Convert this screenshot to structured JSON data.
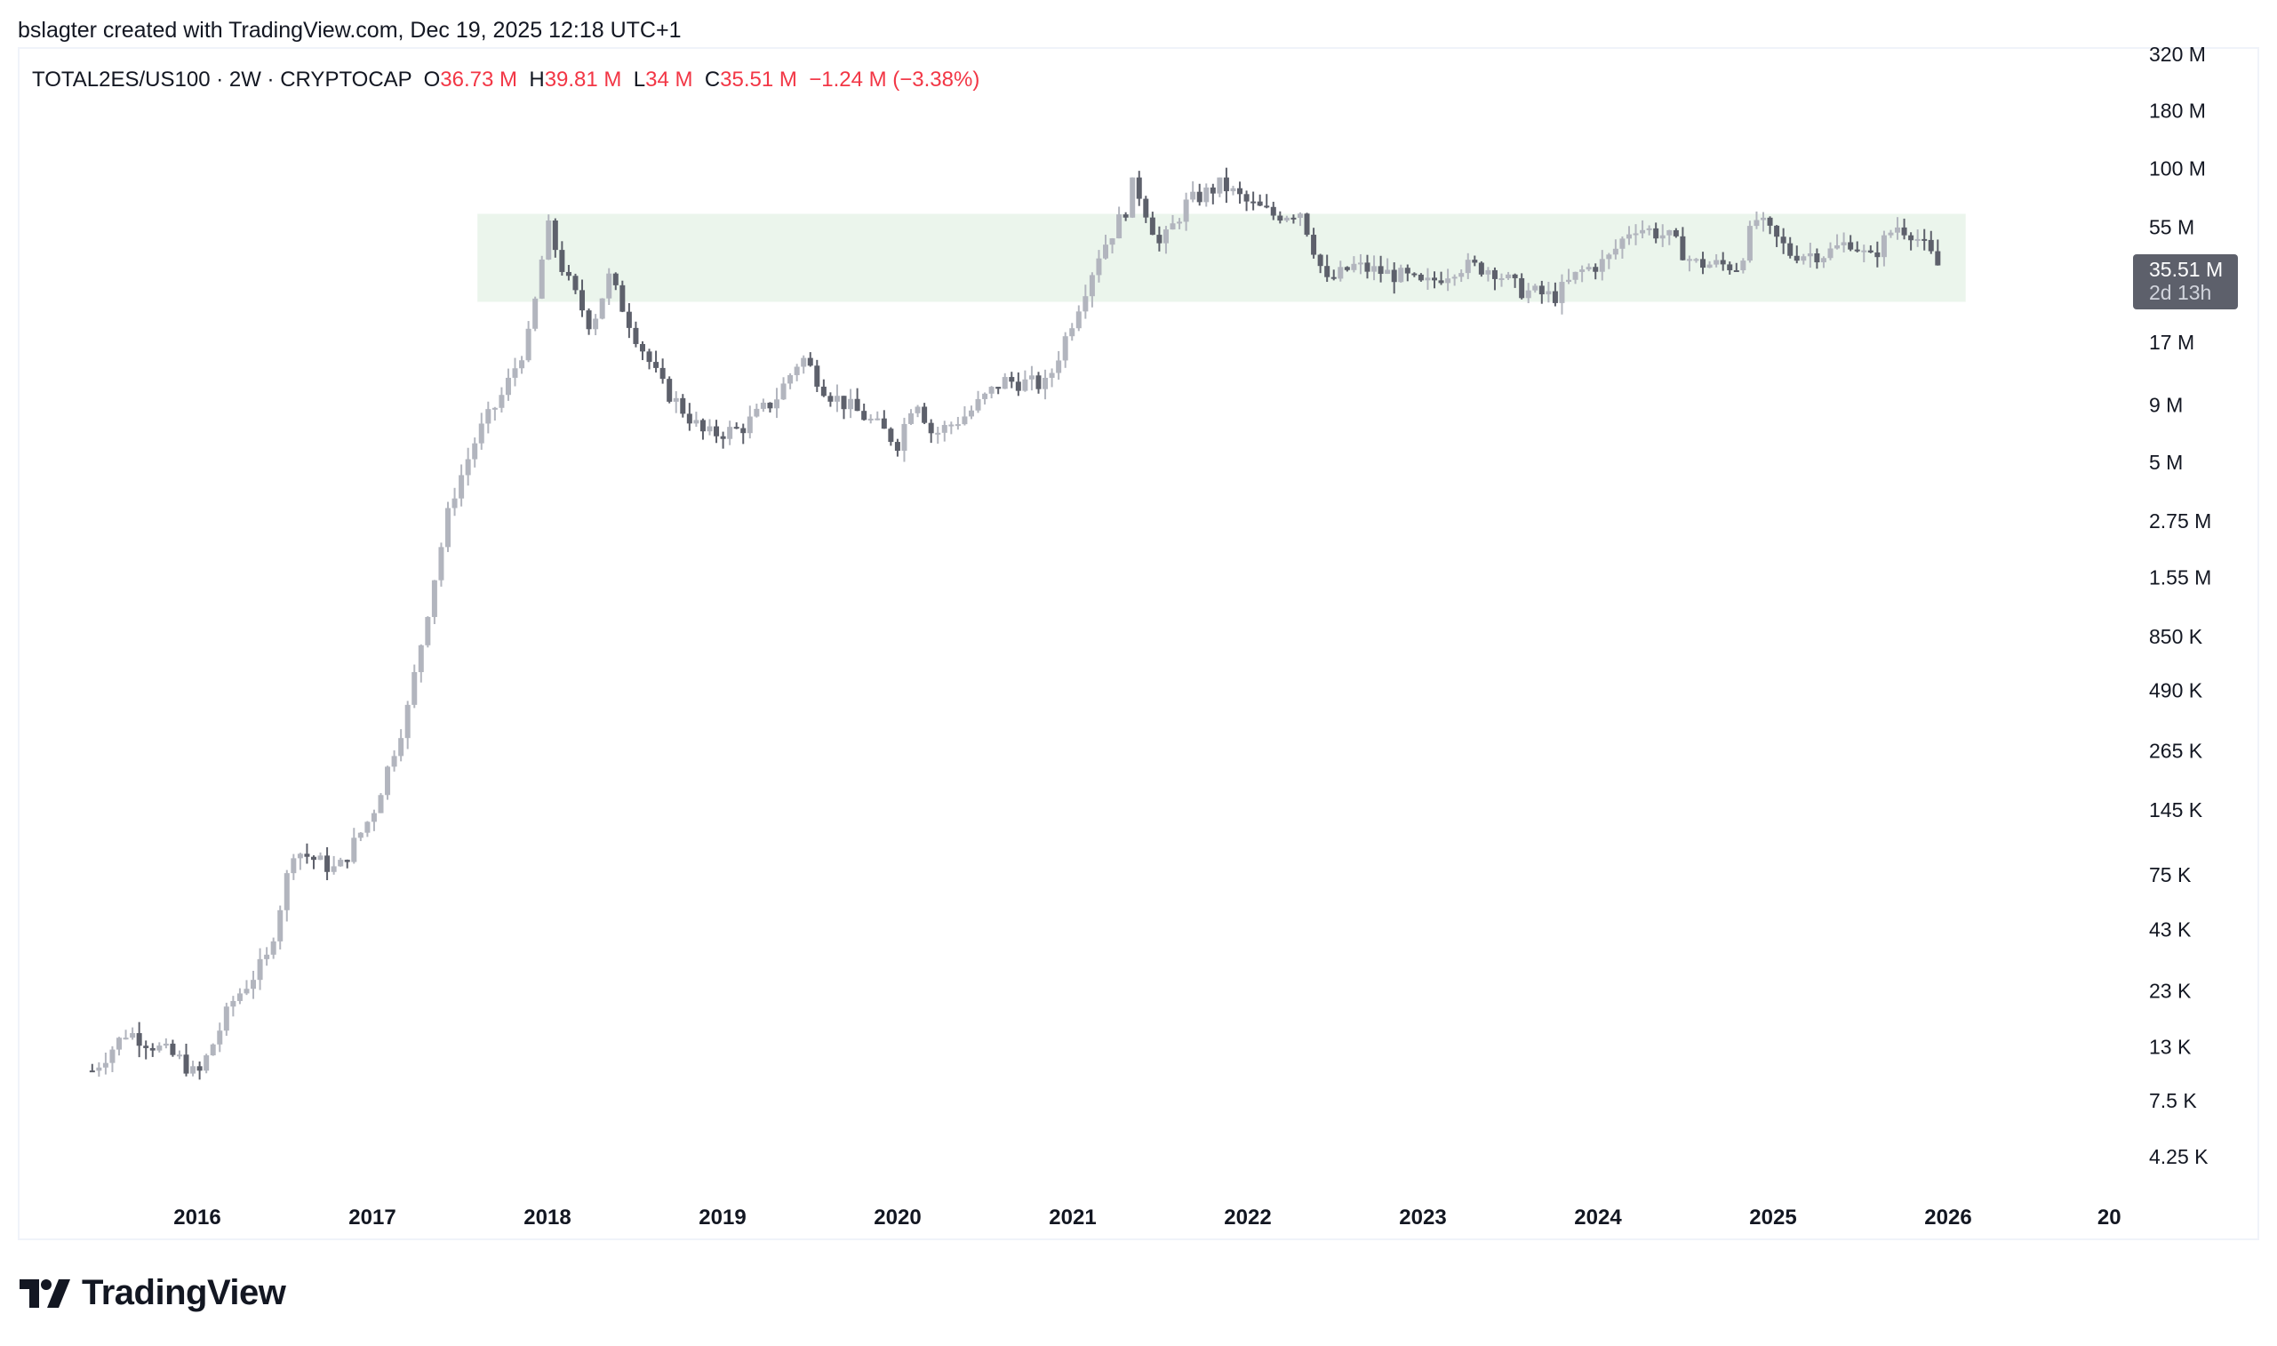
{
  "credit": "bslagter created with TradingView.com, Dec 19, 2025 12:18 UTC+1",
  "legend": {
    "symbol": "TOTAL2ES/US100 · 2W · CRYPTOCAP",
    "o_label": "O",
    "o": "36.73 M",
    "h_label": "H",
    "h": "39.81 M",
    "l_label": "L",
    "l": "34 M",
    "c_label": "C",
    "c": "35.51 M",
    "change": "−1.24 M (−3.38%)"
  },
  "badge": {
    "price": "35.51 M",
    "countdown": "2d 13h"
  },
  "logo_text": "TradingView",
  "colors": {
    "up": "#b2b5be",
    "down": "#5d606b",
    "zone": "#ebf5ec",
    "change": "#f23645"
  },
  "chart_data": {
    "type": "candlestick",
    "interval": "2W",
    "yscale": "log",
    "ylim": [
      4000,
      330000000
    ],
    "y_ticks": [
      {
        "v": 320000000,
        "label": "320 M"
      },
      {
        "v": 180000000,
        "label": "180 M"
      },
      {
        "v": 100000000,
        "label": "100 M"
      },
      {
        "v": 55000000,
        "label": "55 M"
      },
      {
        "v": 17000000,
        "label": "17 M"
      },
      {
        "v": 9000000,
        "label": "9 M"
      },
      {
        "v": 5000000,
        "label": "5 M"
      },
      {
        "v": 2750000,
        "label": "2.75 M"
      },
      {
        "v": 1550000,
        "label": "1.55 M"
      },
      {
        "v": 850000,
        "label": "850 K"
      },
      {
        "v": 490000,
        "label": "490 K"
      },
      {
        "v": 265000,
        "label": "265 K"
      },
      {
        "v": 145000,
        "label": "145 K"
      },
      {
        "v": 75000,
        "label": "75 K"
      },
      {
        "v": 43000,
        "label": "43 K"
      },
      {
        "v": 23000,
        "label": "23 K"
      },
      {
        "v": 13000,
        "label": "13 K"
      },
      {
        "v": 7500,
        "label": "7.5 K"
      },
      {
        "v": 4250,
        "label": "4.25 K"
      }
    ],
    "x_ticks": [
      {
        "t": 2016,
        "label": "2016"
      },
      {
        "t": 2017,
        "label": "2017"
      },
      {
        "t": 2018,
        "label": "2018"
      },
      {
        "t": 2019,
        "label": "2019"
      },
      {
        "t": 2020,
        "label": "2020"
      },
      {
        "t": 2021,
        "label": "2021"
      },
      {
        "t": 2022,
        "label": "2022"
      },
      {
        "t": 2023,
        "label": "2023"
      },
      {
        "t": 2024,
        "label": "2024"
      },
      {
        "t": 2025,
        "label": "2025"
      },
      {
        "t": 2026,
        "label": "2026"
      },
      {
        "t": 2026.92,
        "label": "20"
      }
    ],
    "zone": {
      "t_start": 2017.6,
      "t_end": 2026.1,
      "low": 25700000,
      "high": 63000000
    },
    "price_path": [
      [
        2015.4,
        10200
      ],
      [
        2015.6,
        15200
      ],
      [
        2015.9,
        11400
      ],
      [
        2016.0,
        9500
      ],
      [
        2016.2,
        20500
      ],
      [
        2016.4,
        32000
      ],
      [
        2016.55,
        97000
      ],
      [
        2016.8,
        78000
      ],
      [
        2017.0,
        140000
      ],
      [
        2017.2,
        400000
      ],
      [
        2017.35,
        1500000
      ],
      [
        2017.45,
        3400000
      ],
      [
        2017.6,
        6600000
      ],
      [
        2017.75,
        10200000
      ],
      [
        2017.9,
        18500000
      ],
      [
        2018.0,
        56000000
      ],
      [
        2018.1,
        33500000
      ],
      [
        2018.25,
        20000000
      ],
      [
        2018.35,
        33000000
      ],
      [
        2018.5,
        18500000
      ],
      [
        2018.65,
        11000000
      ],
      [
        2018.9,
        6600000
      ],
      [
        2019.1,
        7000000
      ],
      [
        2019.3,
        9500000
      ],
      [
        2019.45,
        14800000
      ],
      [
        2019.6,
        10200000
      ],
      [
        2019.85,
        7600000
      ],
      [
        2020.0,
        6100000
      ],
      [
        2020.1,
        10000000
      ],
      [
        2020.2,
        6600000
      ],
      [
        2020.4,
        8200000
      ],
      [
        2020.6,
        11500000
      ],
      [
        2020.85,
        11000000
      ],
      [
        2021.0,
        21500000
      ],
      [
        2021.15,
        42000000
      ],
      [
        2021.3,
        65000000
      ],
      [
        2021.35,
        88000000
      ],
      [
        2021.5,
        45000000
      ],
      [
        2021.65,
        70000000
      ],
      [
        2021.85,
        85000000
      ],
      [
        2022.0,
        70000000
      ],
      [
        2022.15,
        62000000
      ],
      [
        2022.3,
        65000000
      ],
      [
        2022.45,
        31000000
      ],
      [
        2022.6,
        37000000
      ],
      [
        2022.9,
        33000000
      ],
      [
        2023.0,
        30000000
      ],
      [
        2023.2,
        37000000
      ],
      [
        2023.4,
        36000000
      ],
      [
        2023.55,
        29000000
      ],
      [
        2023.75,
        27000000
      ],
      [
        2023.9,
        35000000
      ],
      [
        2024.05,
        39000000
      ],
      [
        2024.2,
        56000000
      ],
      [
        2024.4,
        50000000
      ],
      [
        2024.55,
        38000000
      ],
      [
        2024.8,
        37000000
      ],
      [
        2024.9,
        60000000
      ],
      [
        2025.1,
        42000000
      ],
      [
        2025.3,
        42000000
      ],
      [
        2025.45,
        48000000
      ],
      [
        2025.55,
        39000000
      ],
      [
        2025.7,
        56000000
      ],
      [
        2025.8,
        52000000
      ],
      [
        2025.96,
        35510000
      ]
    ]
  }
}
